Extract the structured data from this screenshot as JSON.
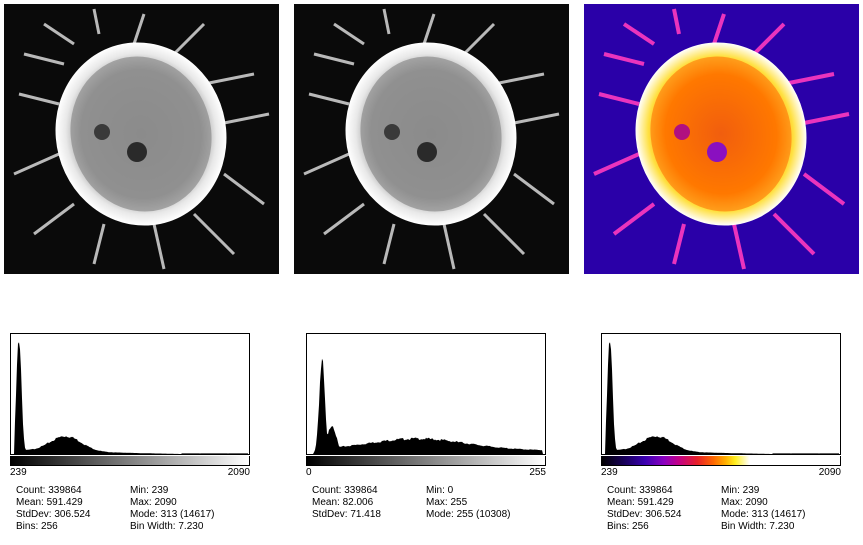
{
  "images": [
    {
      "name": "grayscale-16bit",
      "lut": "grays"
    },
    {
      "name": "grayscale-8bit",
      "lut": "grays"
    },
    {
      "name": "fire-lut",
      "lut": "fire"
    }
  ],
  "histograms": [
    {
      "axis_min": "239",
      "axis_max": "2090",
      "ramp": "gray",
      "stats_left": [
        "Count: 339864",
        "Mean: 591.429",
        "StdDev: 306.524",
        "Bins: 256"
      ],
      "stats_right": [
        "Min: 239",
        "Max: 2090",
        "Mode: 313 (14617)",
        "Bin Width: 7.230"
      ]
    },
    {
      "axis_min": "0",
      "axis_max": "255",
      "ramp": "gray",
      "stats_left": [
        "Count: 339864",
        "Mean: 82.006",
        "StdDev: 71.418"
      ],
      "stats_right": [
        "Min: 0",
        "Max: 255",
        "Mode: 255 (10308)"
      ]
    },
    {
      "axis_min": "239",
      "axis_max": "2090",
      "ramp": "fire",
      "stats_left": [
        "Count: 339864",
        "Mean: 591.429",
        "StdDev: 306.524",
        "Bins: 256"
      ],
      "stats_right": [
        "Min: 239",
        "Max: 2090",
        "Mode: 313 (14617)",
        "Bin Width: 7.230"
      ]
    }
  ],
  "colors": {
    "fire_background": "#3a00b0",
    "cell_bright": "#ffffff",
    "fire_mid": "#ff6a00"
  }
}
